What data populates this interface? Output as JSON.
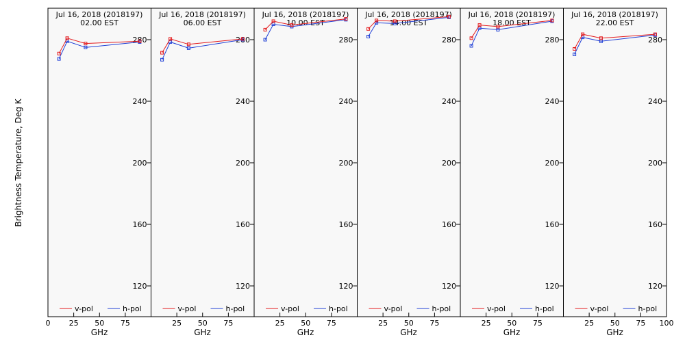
{
  "chart_data": {
    "type": "line",
    "ylabel": "Brightness Temperature, Deg K",
    "xlabel": "GHz",
    "xlim": [
      0,
      100
    ],
    "ylim": [
      100,
      295
    ],
    "xticks": [
      0,
      25,
      50,
      75,
      100
    ],
    "yticks": [
      120,
      160,
      200,
      240,
      280
    ],
    "x": [
      10.7,
      18.7,
      36.5,
      89.0
    ],
    "legend_position": "bottom",
    "series_styles": [
      {
        "name": "v-pol",
        "color": "#e31a1c"
      },
      {
        "name": "h-pol",
        "color": "#1f3fd6"
      }
    ],
    "panels": [
      {
        "title_date": "Jul 16, 2018 (2018197)",
        "title_time": "02.00 EST",
        "series": [
          {
            "name": "v-pol",
            "values": [
              271,
              281,
              277.5,
              279
            ]
          },
          {
            "name": "h-pol",
            "values": [
              267.5,
              279,
              275,
              278.5
            ]
          }
        ]
      },
      {
        "title_date": "Jul 16, 2018 (2018197)",
        "title_time": "06.00 EST",
        "series": [
          {
            "name": "v-pol",
            "values": [
              271.5,
              280.5,
              277,
              280.5
            ]
          },
          {
            "name": "h-pol",
            "values": [
              267,
              278.5,
              274.5,
              280
            ]
          }
        ]
      },
      {
        "title_date": "Jul 16, 2018 (2018197)",
        "title_time": "10.00 EST",
        "series": [
          {
            "name": "v-pol",
            "values": [
              286.5,
              292,
              289.5,
              293.5
            ]
          },
          {
            "name": "h-pol",
            "values": [
              280,
              290,
              288.5,
              293
            ]
          }
        ]
      },
      {
        "title_date": "Jul 16, 2018 (2018197)",
        "title_time": "14.00 EST",
        "series": [
          {
            "name": "v-pol",
            "values": [
              287,
              292.5,
              292,
              295
            ]
          },
          {
            "name": "h-pol",
            "values": [
              282,
              291,
              290.5,
              294.5
            ]
          }
        ]
      },
      {
        "title_date": "Jul 16, 2018 (2018197)",
        "title_time": "18.00 EST",
        "series": [
          {
            "name": "v-pol",
            "values": [
              281,
              289.5,
              288.5,
              292.5
            ]
          },
          {
            "name": "h-pol",
            "values": [
              276,
              287.5,
              286.5,
              292
            ]
          }
        ]
      },
      {
        "title_date": "Jul 16, 2018 (2018197)",
        "title_time": "22.00 EST",
        "series": [
          {
            "name": "v-pol",
            "values": [
              274,
              283.5,
              281,
              283.5
            ]
          },
          {
            "name": "h-pol",
            "values": [
              270.5,
              281.5,
              279,
              283
            ]
          }
        ]
      }
    ]
  }
}
